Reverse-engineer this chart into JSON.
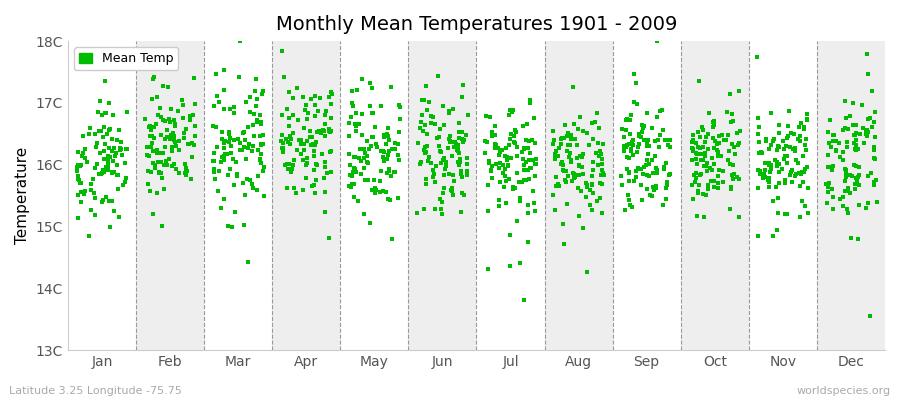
{
  "title": "Monthly Mean Temperatures 1901 - 2009",
  "ylabel": "Temperature",
  "xlabel": "",
  "footnote_left": "Latitude 3.25 Longitude -75.75",
  "footnote_right": "worldspecies.org",
  "legend_label": "Mean Temp",
  "dot_color": "#00bb00",
  "background_color": "#ffffff",
  "plot_bg_color": "#ffffff",
  "band_color_odd": "#ffffff",
  "band_color_even": "#eeeeee",
  "months": [
    "Jan",
    "Feb",
    "Mar",
    "Apr",
    "May",
    "Jun",
    "Jul",
    "Aug",
    "Sep",
    "Oct",
    "Nov",
    "Dec"
  ],
  "ylim": [
    13,
    18
  ],
  "yticks": [
    13,
    14,
    15,
    16,
    17,
    18
  ],
  "ytick_labels": [
    "13C",
    "14C",
    "15C",
    "16C",
    "17C",
    "18C"
  ],
  "n_years": 109,
  "seed": 42,
  "mean_temps": [
    16.1,
    16.3,
    16.3,
    16.25,
    16.2,
    16.1,
    16.05,
    16.05,
    16.1,
    16.1,
    16.1,
    16.15
  ],
  "std_temps": [
    0.48,
    0.52,
    0.48,
    0.46,
    0.46,
    0.46,
    0.44,
    0.44,
    0.44,
    0.42,
    0.42,
    0.46
  ]
}
